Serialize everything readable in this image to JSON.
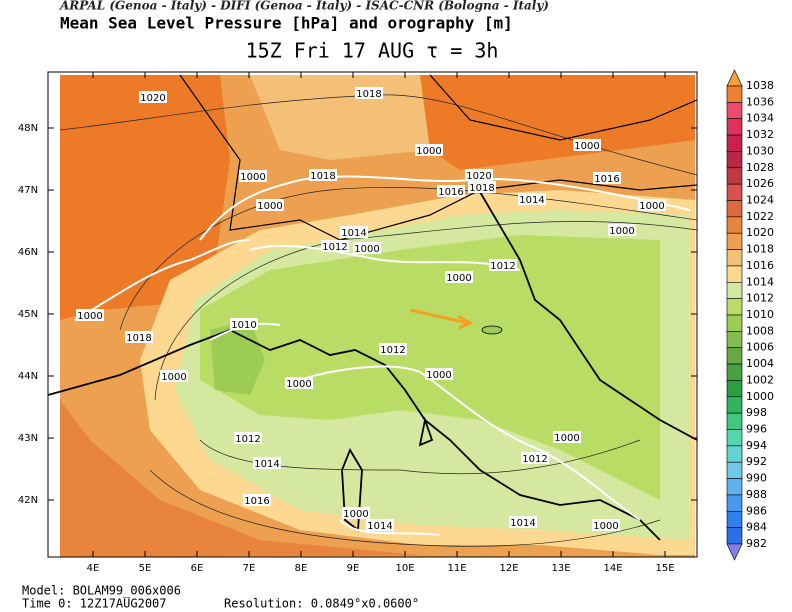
{
  "header": {
    "credits": "ARPAL (Genoa - Italy)  -  DIFI (Genoa - Italy)  -  ISAC-CNR (Bologna - Italy)",
    "title": "Mean Sea Level Pressure [hPa] and orography [m]",
    "subtitle": "15Z Fri 17 AUG  τ = 3h"
  },
  "axes": {
    "lon_labels": [
      "4E",
      "5E",
      "6E",
      "7E",
      "8E",
      "9E",
      "10E",
      "11E",
      "12E",
      "13E",
      "14E",
      "15E"
    ],
    "lat_labels": [
      "48N",
      "47N",
      "46N",
      "45N",
      "44N",
      "43N",
      "42N"
    ]
  },
  "contour_labels": [
    "1020",
    "1018",
    "1000",
    "1000",
    "1000",
    "1018",
    "1016",
    "1020",
    "1018",
    "1016",
    "1000",
    "1014",
    "1000",
    "1014",
    "1012",
    "1000",
    "1000",
    "1012",
    "1000",
    "1000",
    "1010",
    "1018",
    "1012",
    "1000",
    "1000",
    "1000",
    "1012",
    "1000",
    "1014",
    "1012",
    "1016",
    "1000",
    "1014",
    "1014",
    "1000"
  ],
  "colorbar": {
    "labels": [
      "1038",
      "1036",
      "1034",
      "1032",
      "1030",
      "1028",
      "1026",
      "1024",
      "1022",
      "1020",
      "1018",
      "1016",
      "1014",
      "1012",
      "1010",
      "1008",
      "1006",
      "1004",
      "1002",
      "1000",
      "998",
      "996",
      "994",
      "992",
      "990",
      "988",
      "986",
      "984",
      "982"
    ],
    "colors": [
      "#f4a040",
      "#f08030",
      "#ec4c6c",
      "#e0305c",
      "#cc2050",
      "#b82844",
      "#c03840",
      "#d85050",
      "#e06a40",
      "#e8843c",
      "#eca050",
      "#f4c078",
      "#fcd890",
      "#d4e8a0",
      "#b8dc64",
      "#9ccc54",
      "#84bc50",
      "#68a844",
      "#48a040",
      "#28a040",
      "#30b460",
      "#40c880",
      "#50d8b0",
      "#60d4d0",
      "#70c8e8",
      "#60b0f0",
      "#4898f0",
      "#3080f0",
      "#2c70e8",
      "#8080f0"
    ]
  },
  "footer": {
    "model": "Model: BOLAM99_006x006",
    "time": "Time 0: 12Z17AUG2007",
    "resolution": "Resolution: 0.0849°x0.0600°"
  }
}
